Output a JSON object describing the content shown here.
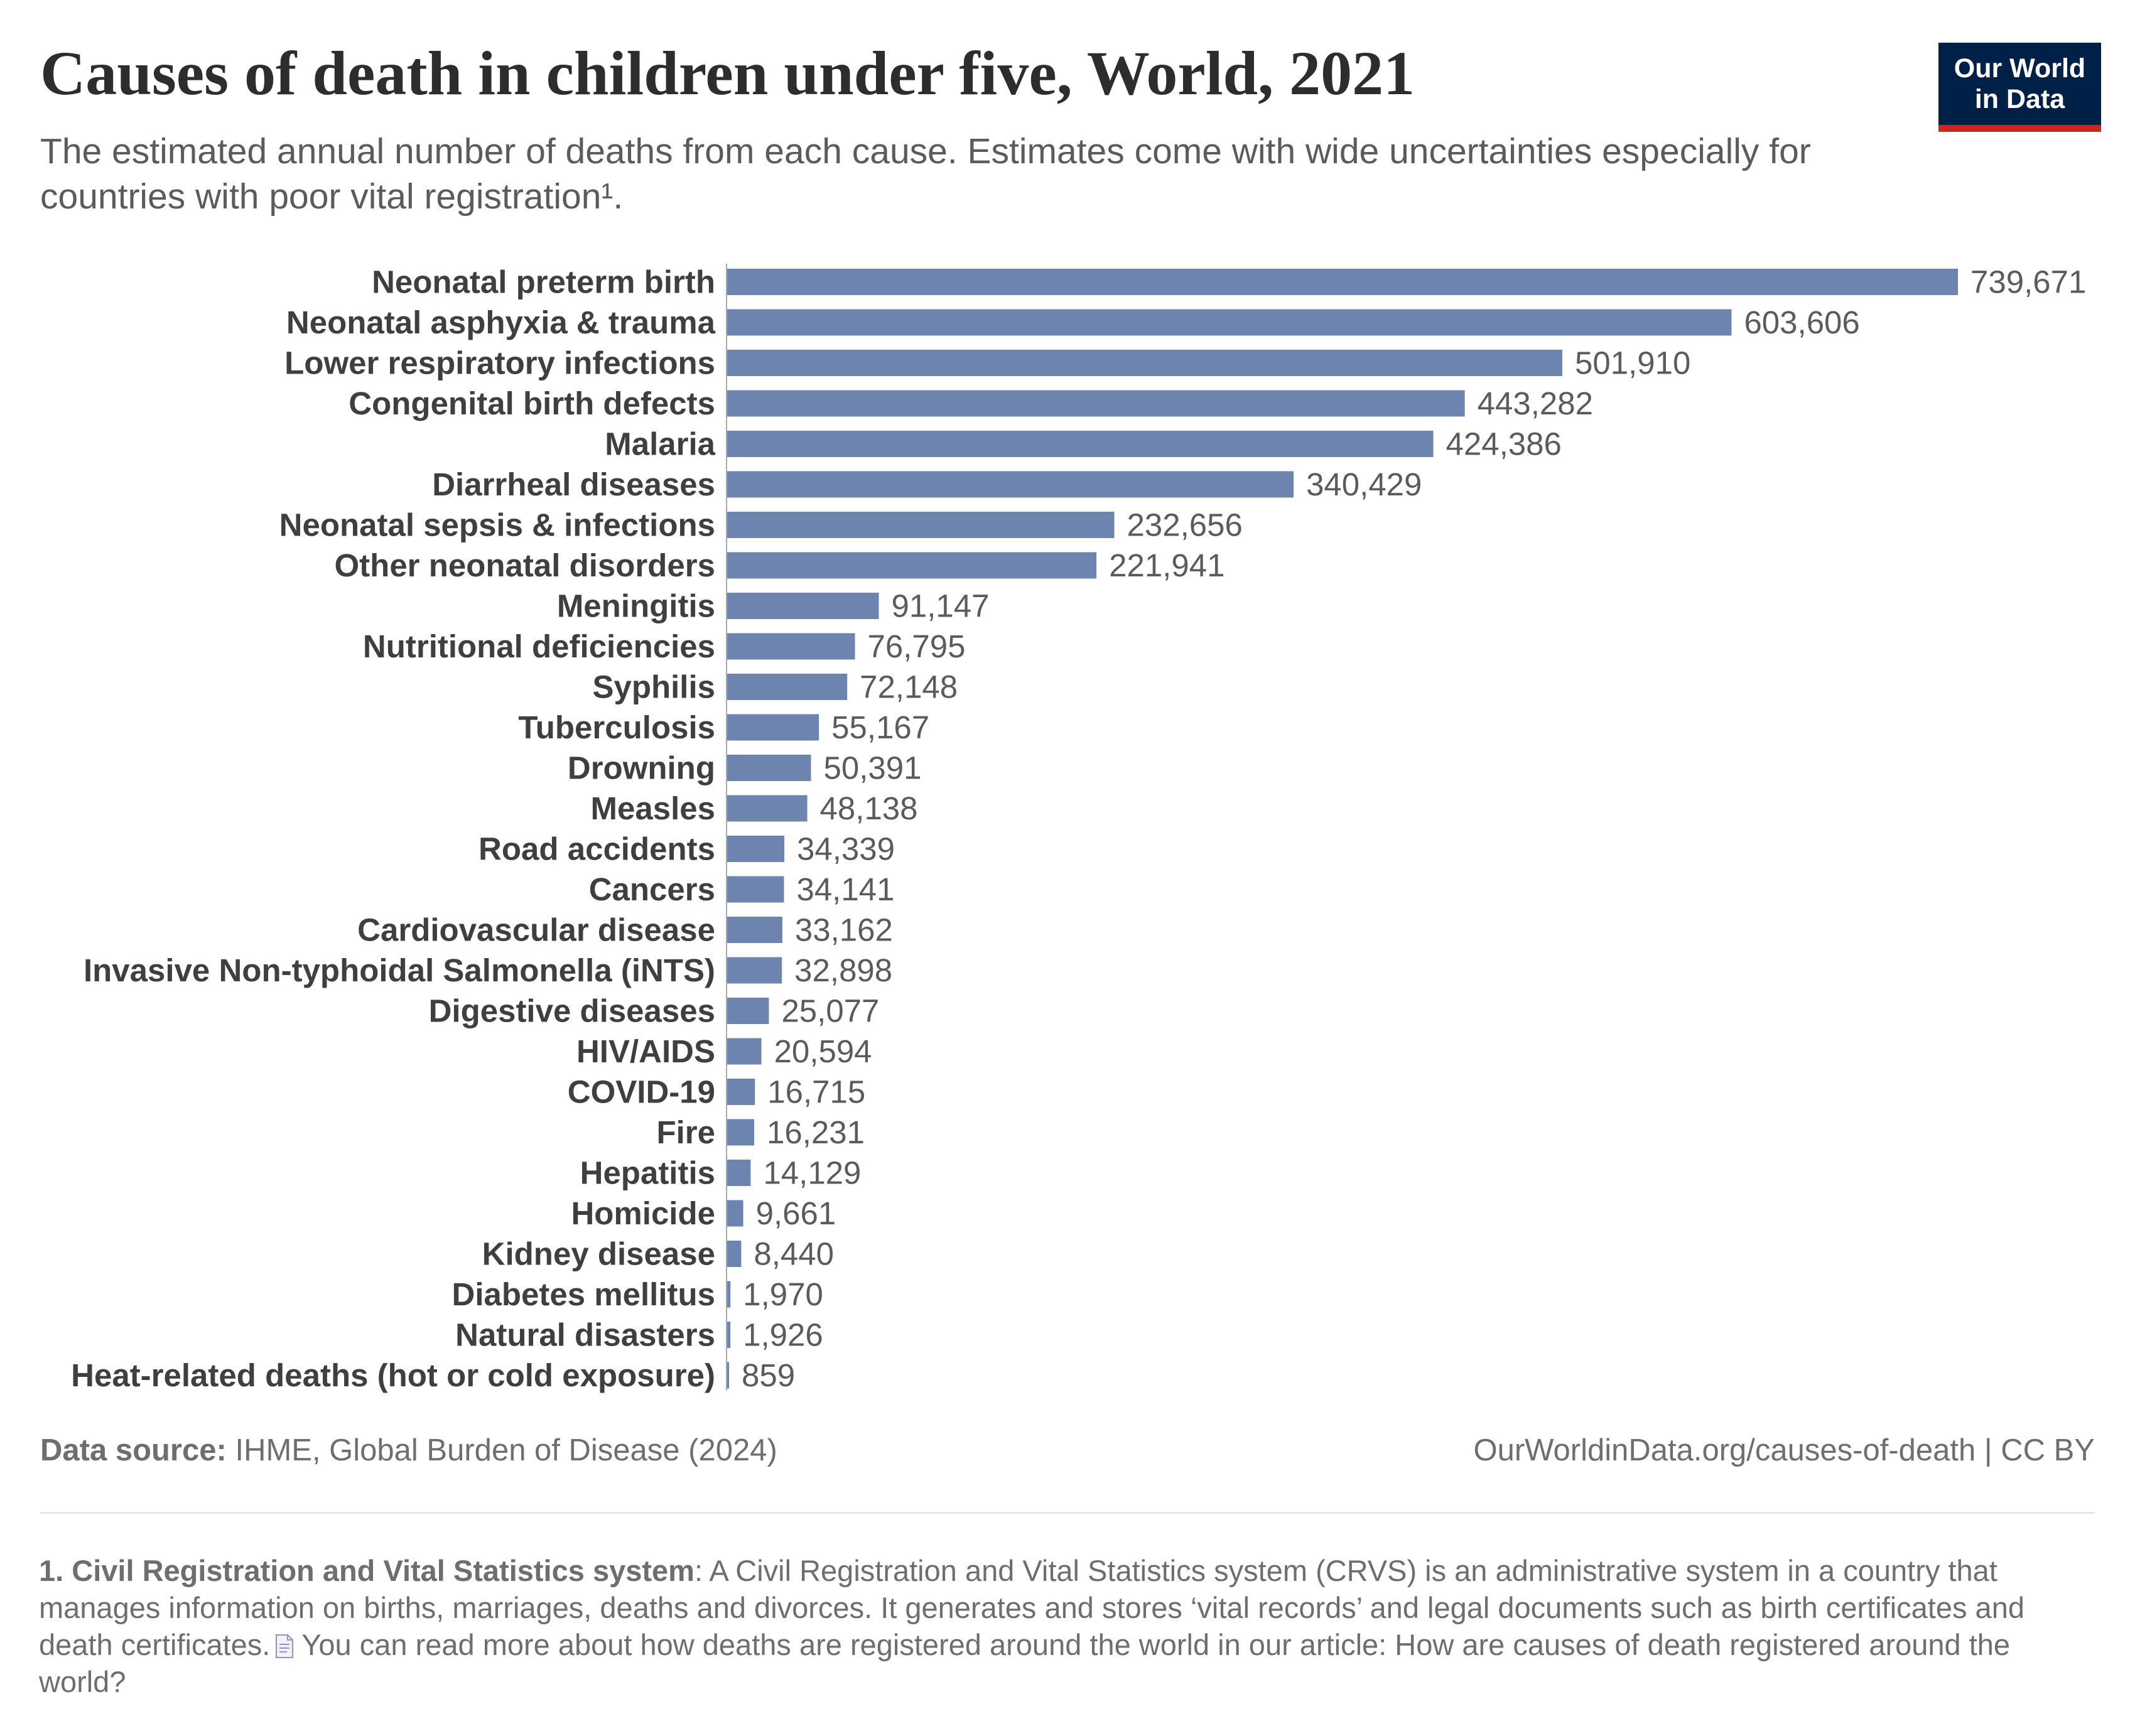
{
  "header": {
    "title": "Causes of death in children under five, World, 2021",
    "subtitle": "The estimated annual number of deaths from each cause. Estimates come with wide uncertainties especially for countries with poor vital registration¹."
  },
  "logo": {
    "line1": "Our World",
    "line2": "in Data"
  },
  "colors": {
    "bar": "#6d84ae",
    "logo_bg": "#002147",
    "logo_accent": "#ce261e"
  },
  "chart_data": {
    "type": "bar",
    "orientation": "horizontal",
    "title": "Causes of death in children under five, World, 2021",
    "categories": [
      "Neonatal preterm birth",
      "Neonatal asphyxia & trauma",
      "Lower respiratory infections",
      "Congenital birth defects",
      "Malaria",
      "Diarrheal diseases",
      "Neonatal sepsis & infections",
      "Other neonatal disorders",
      "Meningitis",
      "Nutritional deficiencies",
      "Syphilis",
      "Tuberculosis",
      "Drowning",
      "Measles",
      "Road accidents",
      "Cancers",
      "Cardiovascular disease",
      "Invasive Non-typhoidal Salmonella (iNTS)",
      "Digestive diseases",
      "HIV/AIDS",
      "COVID-19",
      "Fire",
      "Hepatitis",
      "Homicide",
      "Kidney disease",
      "Diabetes mellitus",
      "Natural disasters",
      "Heat-related deaths (hot or cold exposure)"
    ],
    "values": [
      739671,
      603606,
      501910,
      443282,
      424386,
      340429,
      232656,
      221941,
      91147,
      76795,
      72148,
      55167,
      50391,
      48138,
      34339,
      34141,
      33162,
      32898,
      25077,
      20594,
      16715,
      16231,
      14129,
      9661,
      8440,
      1970,
      1926,
      859
    ],
    "value_labels": [
      "739,671",
      "603,606",
      "501,910",
      "443,282",
      "424,386",
      "340,429",
      "232,656",
      "221,941",
      "91,147",
      "76,795",
      "72,148",
      "55,167",
      "50,391",
      "48,138",
      "34,339",
      "34,141",
      "33,162",
      "32,898",
      "25,077",
      "20,594",
      "16,715",
      "16,231",
      "14,129",
      "9,661",
      "8,440",
      "1,970",
      "1,926",
      "859"
    ],
    "xlim": [
      0,
      739671
    ],
    "xlabel": "",
    "ylabel": ""
  },
  "footer": {
    "source_label": "Data source:",
    "source_text": "IHME, Global Burden of Disease (2024)",
    "url": "OurWorldinData.org/causes-of-death | CC BY"
  },
  "footnote": {
    "term": "1. Civil Registration and Vital Statistics system",
    "text": ": A Civil Registration and Vital Statistics system (CRVS) is an administrative system in a country that manages information on births, marriages, deaths and divorces. It generates and stores ‘vital records’ and legal documents such as birth certificates and death certificates.",
    "icon": "document-icon",
    "more": "You can read more about how deaths are registered around the world in our article: How are causes of death registered around the world?"
  }
}
